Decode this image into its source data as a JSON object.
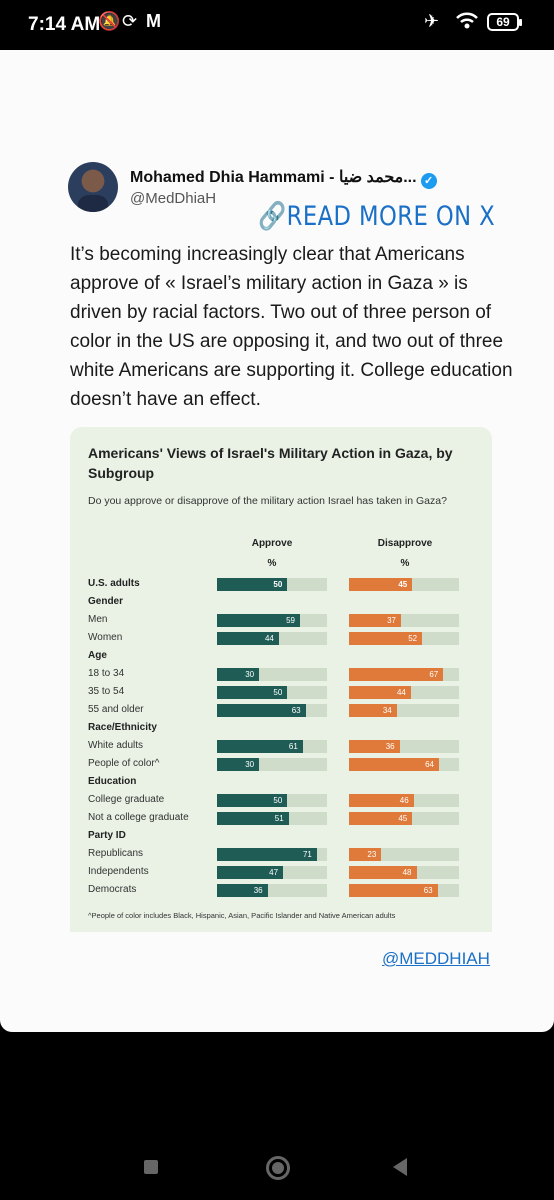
{
  "status_bar": {
    "time": "7:14 AM",
    "icons": [
      "muted-bell-icon",
      "sync-icon",
      "gmail-icon",
      "airplane-icon",
      "wifi-icon"
    ],
    "battery": "69"
  },
  "tweet": {
    "author_name": "Mohamed Dhia Hammami - محمد ضيا...",
    "handle": "@MedDhiaH",
    "read_more": "READ MORE ON X",
    "text": "It’s becoming increasingly clear that Americans approve of « Israel’s military action in Gaza » is driven by racial factors. Two out of three person of color in the US are opposing it, and two out of three white Americans are supporting it. College education doesn’t have an effect."
  },
  "footer_handle": "@MEDDHIAH",
  "chart_data": {
    "type": "bar",
    "title": "Americans' Views of Israel's Military Action in Gaza, by Subgroup",
    "subtitle": "Do you approve or disapprove of the military action Israel has taken in Gaza?",
    "column_headers": {
      "approve": "Approve",
      "disapprove": "Disapprove",
      "unit": "%"
    },
    "colors": {
      "approve": "#1e5c55",
      "disapprove": "#e07a3a",
      "track": "#cfdcca"
    },
    "rows": [
      {
        "label": "U.S. adults",
        "approve": 50,
        "disapprove": 45,
        "bold": true
      },
      {
        "label": "Gender",
        "header": true
      },
      {
        "label": "Men",
        "approve": 59,
        "disapprove": 37
      },
      {
        "label": "Women",
        "approve": 44,
        "disapprove": 52
      },
      {
        "label": "Age",
        "header": true
      },
      {
        "label": "18 to 34",
        "approve": 30,
        "disapprove": 67
      },
      {
        "label": "35 to 54",
        "approve": 50,
        "disapprove": 44
      },
      {
        "label": "55 and older",
        "approve": 63,
        "disapprove": 34
      },
      {
        "label": "Race/Ethnicity",
        "header": true
      },
      {
        "label": "White adults",
        "approve": 61,
        "disapprove": 36
      },
      {
        "label": "People of color^",
        "approve": 30,
        "disapprove": 64
      },
      {
        "label": "Education",
        "header": true
      },
      {
        "label": "College graduate",
        "approve": 50,
        "disapprove": 46
      },
      {
        "label": "Not a college graduate",
        "approve": 51,
        "disapprove": 45
      },
      {
        "label": "Party ID",
        "header": true
      },
      {
        "label": "Republicans",
        "approve": 71,
        "disapprove": 23
      },
      {
        "label": "Independents",
        "approve": 47,
        "disapprove": 48
      },
      {
        "label": "Democrats",
        "approve": 36,
        "disapprove": 63
      }
    ],
    "footnote": "^People of color includes Black, Hispanic, Asian, Pacific Islander and Native American adults"
  }
}
